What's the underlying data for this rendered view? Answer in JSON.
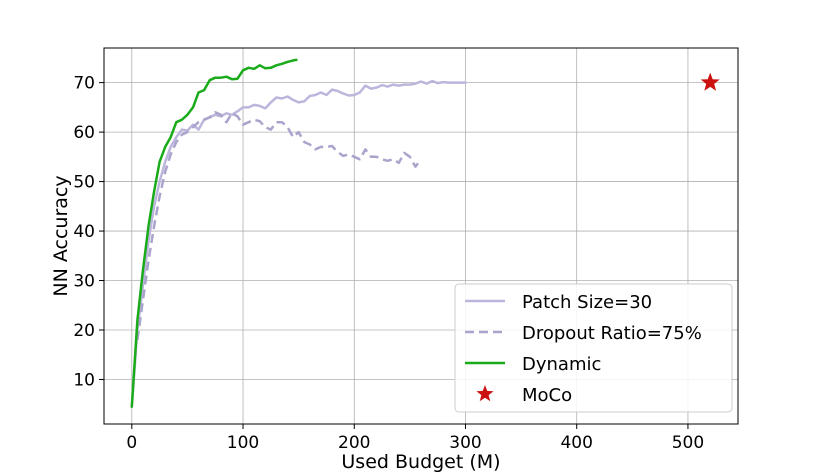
{
  "chart_data": {
    "type": "line",
    "title": "",
    "xlabel": "Used Budget (M)",
    "ylabel": "NN Accuracy",
    "xlim": [
      -25,
      545
    ],
    "ylim": [
      1,
      77
    ],
    "xticks": [
      0,
      100,
      200,
      300,
      400,
      500
    ],
    "yticks": [
      10,
      20,
      30,
      40,
      50,
      60,
      70
    ],
    "grid": true,
    "legend_position": "lower-right",
    "series": [
      {
        "name": "Patch Size=30",
        "style": "solid",
        "color": "#bcb6dc",
        "points": [
          [
            0,
            4.5
          ],
          [
            5,
            20
          ],
          [
            10,
            29
          ],
          [
            15,
            38
          ],
          [
            20,
            45
          ],
          [
            25,
            50
          ],
          [
            30,
            54
          ],
          [
            35,
            57
          ],
          [
            40,
            59
          ],
          [
            45,
            60.5
          ],
          [
            50,
            60.3
          ],
          [
            55,
            61.5
          ],
          [
            60,
            60.5
          ],
          [
            65,
            62.5
          ],
          [
            70,
            63
          ],
          [
            75,
            63.5
          ],
          [
            80,
            63.2
          ],
          [
            85,
            63.8
          ],
          [
            90,
            63.5
          ],
          [
            95,
            64.2
          ],
          [
            100,
            65
          ],
          [
            105,
            65
          ],
          [
            110,
            65.5
          ],
          [
            115,
            65.3
          ],
          [
            120,
            64.8
          ],
          [
            125,
            66
          ],
          [
            130,
            67
          ],
          [
            135,
            66.8
          ],
          [
            140,
            67.2
          ],
          [
            145,
            66.5
          ],
          [
            150,
            66
          ],
          [
            155,
            66.2
          ],
          [
            160,
            67.3
          ],
          [
            165,
            67.5
          ],
          [
            170,
            68
          ],
          [
            175,
            67.5
          ],
          [
            180,
            68.6
          ],
          [
            185,
            68.3
          ],
          [
            190,
            67.8
          ],
          [
            195,
            67.4
          ],
          [
            200,
            67.5
          ],
          [
            205,
            68
          ],
          [
            210,
            69.4
          ],
          [
            215,
            68.8
          ],
          [
            220,
            69
          ],
          [
            225,
            69.5
          ],
          [
            230,
            69.2
          ],
          [
            235,
            69.6
          ],
          [
            240,
            69.4
          ],
          [
            245,
            69.6
          ],
          [
            250,
            69.6
          ],
          [
            255,
            69.8
          ],
          [
            260,
            70.2
          ],
          [
            265,
            69.8
          ],
          [
            270,
            70.3
          ],
          [
            275,
            69.9
          ],
          [
            280,
            70.1
          ],
          [
            285,
            70
          ],
          [
            290,
            70
          ],
          [
            295,
            70
          ],
          [
            300,
            70
          ]
        ]
      },
      {
        "name": "Dropout Ratio=75%",
        "style": "dashed",
        "color": "#aaa4cc",
        "points": [
          [
            5,
            18
          ],
          [
            10,
            26
          ],
          [
            15,
            34
          ],
          [
            20,
            41
          ],
          [
            25,
            47
          ],
          [
            30,
            52
          ],
          [
            35,
            55.5
          ],
          [
            40,
            58
          ],
          [
            45,
            59.5
          ],
          [
            50,
            60
          ],
          [
            55,
            61
          ],
          [
            60,
            62
          ],
          [
            65,
            62.5
          ],
          [
            70,
            63
          ],
          [
            75,
            64
          ],
          [
            80,
            63.5
          ],
          [
            85,
            62
          ],
          [
            90,
            63.8
          ],
          [
            95,
            63.2
          ],
          [
            100,
            61.5
          ],
          [
            105,
            62
          ],
          [
            110,
            62.5
          ],
          [
            115,
            62.2
          ],
          [
            120,
            61
          ],
          [
            125,
            60.5
          ],
          [
            130,
            62
          ],
          [
            135,
            62
          ],
          [
            140,
            61
          ],
          [
            145,
            59
          ],
          [
            150,
            60
          ],
          [
            155,
            58
          ],
          [
            160,
            57.5
          ],
          [
            165,
            56.5
          ],
          [
            170,
            57
          ],
          [
            175,
            57
          ],
          [
            180,
            57.2
          ],
          [
            185,
            56
          ],
          [
            190,
            55.2
          ],
          [
            195,
            55.5
          ],
          [
            200,
            55
          ],
          [
            205,
            54.5
          ],
          [
            210,
            56.5
          ],
          [
            215,
            55
          ],
          [
            220,
            55
          ],
          [
            225,
            54.5
          ],
          [
            230,
            54.2
          ],
          [
            235,
            54.5
          ],
          [
            240,
            53.8
          ],
          [
            245,
            55.8
          ],
          [
            250,
            55
          ],
          [
            255,
            53
          ],
          [
            260,
            54.5
          ]
        ]
      },
      {
        "name": "Dynamic",
        "style": "solid",
        "color": "#1aab1a",
        "points": [
          [
            0,
            4.5
          ],
          [
            5,
            22
          ],
          [
            10,
            32
          ],
          [
            15,
            41
          ],
          [
            20,
            48
          ],
          [
            25,
            54
          ],
          [
            30,
            57
          ],
          [
            35,
            59
          ],
          [
            40,
            62
          ],
          [
            45,
            62.5
          ],
          [
            50,
            63.5
          ],
          [
            55,
            65
          ],
          [
            60,
            68
          ],
          [
            65,
            68.5
          ],
          [
            70,
            70.5
          ],
          [
            75,
            71
          ],
          [
            80,
            71
          ],
          [
            85,
            71.2
          ],
          [
            90,
            70.7
          ],
          [
            95,
            70.8
          ],
          [
            100,
            72.5
          ],
          [
            105,
            73
          ],
          [
            110,
            72.8
          ],
          [
            115,
            73.5
          ],
          [
            120,
            72.9
          ],
          [
            125,
            73
          ],
          [
            130,
            73.5
          ],
          [
            135,
            73.8
          ],
          [
            140,
            74.2
          ],
          [
            145,
            74.5
          ],
          [
            148,
            74.6
          ]
        ]
      },
      {
        "name": "MoCo",
        "style": "marker",
        "marker": "star",
        "color": "#cc1111",
        "points": [
          [
            520,
            70
          ]
        ]
      }
    ]
  }
}
